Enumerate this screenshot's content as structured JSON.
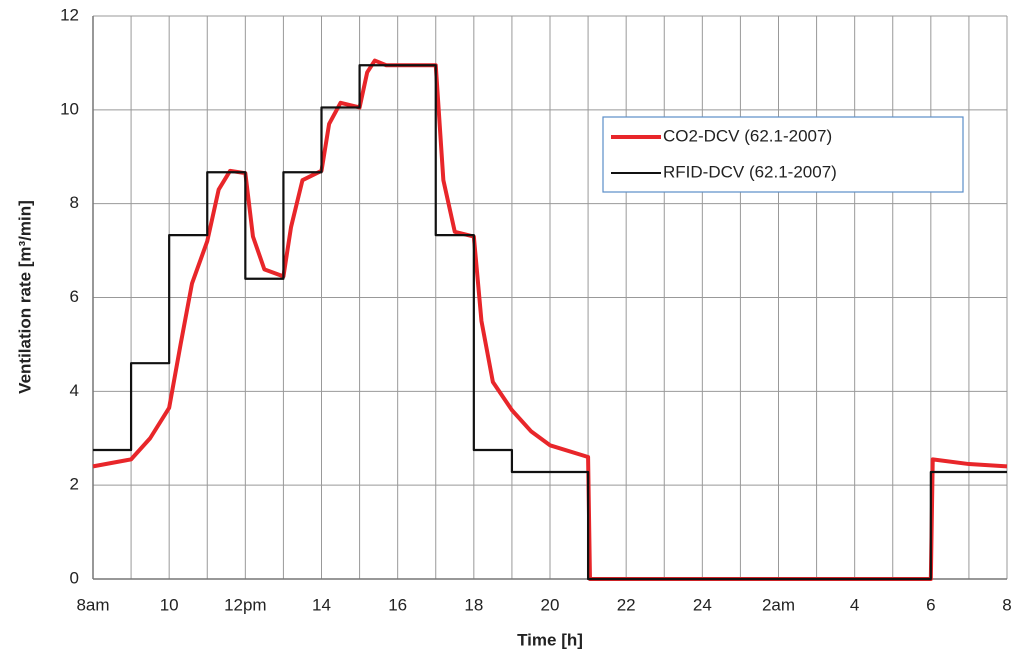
{
  "chart_data": {
    "type": "line",
    "xlabel": "Time [h]",
    "ylabel": "Ventilation rate [m³/min]",
    "xlim": [
      8,
      32
    ],
    "ylim": [
      0,
      12
    ],
    "xticks": [
      {
        "value": 8,
        "label": "8am"
      },
      10,
      {
        "value": 12,
        "label": "12pm"
      },
      14,
      16,
      18,
      20,
      22,
      24,
      {
        "value": 26,
        "label": "2am"
      },
      {
        "value": 28,
        "label": "4"
      },
      {
        "value": 30,
        "label": "6"
      },
      {
        "value": 32,
        "label": "8"
      }
    ],
    "xgrid": [
      9,
      11,
      13,
      15,
      17,
      19,
      21,
      23,
      25,
      27,
      29,
      31
    ],
    "yticks": [
      0,
      2,
      4,
      6,
      8,
      10,
      12
    ],
    "grid": true,
    "legend": "upper right",
    "series": [
      {
        "name": "CO2-DCV (62.1-2007)",
        "color": "#e8262a",
        "x": [
          8,
          9,
          9.5,
          10,
          10.3,
          10.6,
          11,
          11.3,
          11.6,
          12,
          12.2,
          12.5,
          13,
          13.2,
          13.5,
          14,
          14.2,
          14.5,
          15,
          15.2,
          15.4,
          15.7,
          17,
          17.2,
          17.5,
          18,
          18.2,
          18.5,
          19,
          19.5,
          20,
          21,
          21.05,
          30,
          30.05,
          31,
          32
        ],
        "values": [
          2.4,
          2.55,
          3.0,
          3.65,
          5.0,
          6.3,
          7.2,
          8.3,
          8.7,
          8.65,
          7.3,
          6.6,
          6.45,
          7.5,
          8.5,
          8.7,
          9.7,
          10.15,
          10.05,
          10.8,
          11.05,
          10.95,
          10.95,
          8.5,
          7.4,
          7.3,
          5.5,
          4.2,
          3.6,
          3.15,
          2.85,
          2.6,
          0,
          0,
          2.55,
          2.45,
          2.4
        ]
      },
      {
        "name": "RFID-DCV (62.1-2007)",
        "color": "#111111",
        "x": [
          8,
          9,
          9,
          10,
          10,
          11,
          11,
          12,
          12,
          13,
          13,
          14,
          14,
          15,
          15,
          17,
          17,
          18,
          18,
          19,
          19,
          21,
          21,
          30,
          30,
          32
        ],
        "values": [
          2.75,
          2.75,
          4.6,
          4.6,
          7.33,
          7.33,
          8.67,
          8.67,
          6.4,
          6.4,
          8.67,
          8.67,
          10.05,
          10.05,
          10.95,
          10.95,
          7.33,
          7.33,
          2.75,
          2.75,
          2.28,
          2.28,
          0,
          0,
          2.28,
          2.28
        ]
      }
    ]
  }
}
